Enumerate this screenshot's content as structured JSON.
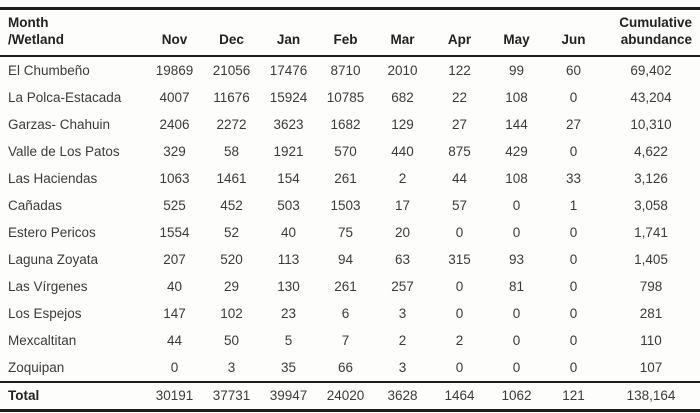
{
  "table": {
    "header": {
      "wetland": [
        "Month",
        "/Wetland"
      ],
      "months": [
        "Nov",
        "Dec",
        "Jan",
        "Feb",
        "Mar",
        "Apr",
        "May",
        "Jun"
      ],
      "cumulative": [
        "Cumulative",
        "abundance"
      ]
    },
    "rows": [
      {
        "wetland": "El Chumbeño",
        "values": [
          "19869",
          "21056",
          "17476",
          "8710",
          "2010",
          "122",
          "99",
          "60"
        ],
        "cumulative": "69,402"
      },
      {
        "wetland": "La Polca-Estacada",
        "values": [
          "4007",
          "11676",
          "15924",
          "10785",
          "682",
          "22",
          "108",
          "0"
        ],
        "cumulative": "43,204"
      },
      {
        "wetland": "Garzas- Chahuin",
        "values": [
          "2406",
          "2272",
          "3623",
          "1682",
          "129",
          "27",
          "144",
          "27"
        ],
        "cumulative": "10,310"
      },
      {
        "wetland": "Valle de Los Patos",
        "values": [
          "329",
          "58",
          "1921",
          "570",
          "440",
          "875",
          "429",
          "0"
        ],
        "cumulative": "4,622"
      },
      {
        "wetland": "Las Haciendas",
        "values": [
          "1063",
          "1461",
          "154",
          "261",
          "2",
          "44",
          "108",
          "33"
        ],
        "cumulative": "3,126"
      },
      {
        "wetland": "Cañadas",
        "values": [
          "525",
          "452",
          "503",
          "1503",
          "17",
          "57",
          "0",
          "1"
        ],
        "cumulative": "3,058"
      },
      {
        "wetland": "Estero Pericos",
        "values": [
          "1554",
          "52",
          "40",
          "75",
          "20",
          "0",
          "0",
          "0"
        ],
        "cumulative": "1,741"
      },
      {
        "wetland": "Laguna Zoyata",
        "values": [
          "207",
          "520",
          "113",
          "94",
          "63",
          "315",
          "93",
          "0"
        ],
        "cumulative": "1,405"
      },
      {
        "wetland": "Las Vírgenes",
        "values": [
          "40",
          "29",
          "130",
          "261",
          "257",
          "0",
          "81",
          "0"
        ],
        "cumulative": "798"
      },
      {
        "wetland": "Los Espejos",
        "values": [
          "147",
          "102",
          "23",
          "6",
          "3",
          "0",
          "0",
          "0"
        ],
        "cumulative": "281"
      },
      {
        "wetland": "Mexcaltitan",
        "values": [
          "44",
          "50",
          "5",
          "7",
          "2",
          "2",
          "0",
          "0"
        ],
        "cumulative": "110"
      },
      {
        "wetland": "Zoquipan",
        "values": [
          "0",
          "3",
          "35",
          "66",
          "3",
          "0",
          "0",
          "0"
        ],
        "cumulative": "107"
      }
    ],
    "total": {
      "label": "Total",
      "values": [
        "30191",
        "37731",
        "39947",
        "24020",
        "3628",
        "1464",
        "1062",
        "121"
      ],
      "cumulative": "138,164"
    }
  }
}
